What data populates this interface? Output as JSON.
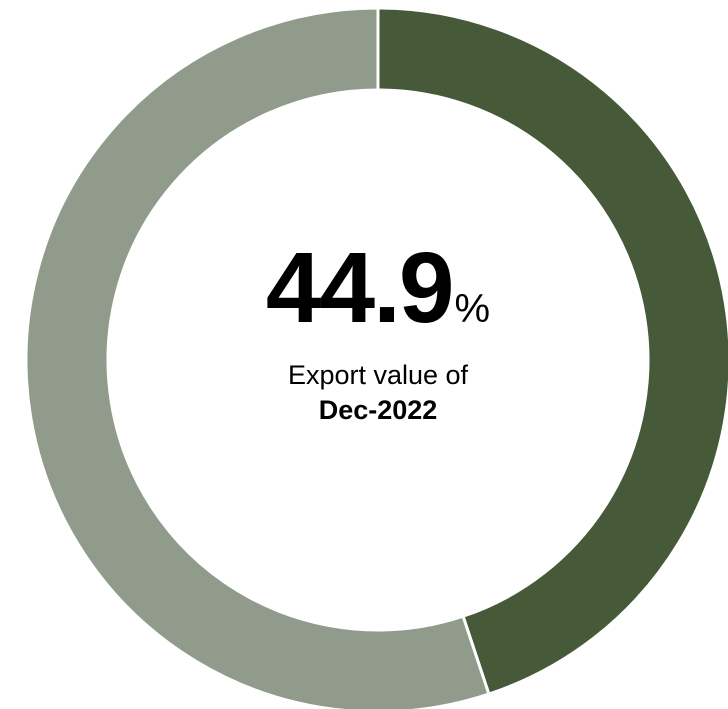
{
  "chart_data": {
    "type": "pie",
    "slices": [
      {
        "value": 44.9,
        "color": "#465a3a"
      },
      {
        "value": 55.1,
        "color": "#919b8c"
      }
    ],
    "center": {
      "value": "44.9",
      "unit": "%",
      "caption": "Export value of",
      "date": "Dec-2022"
    }
  }
}
